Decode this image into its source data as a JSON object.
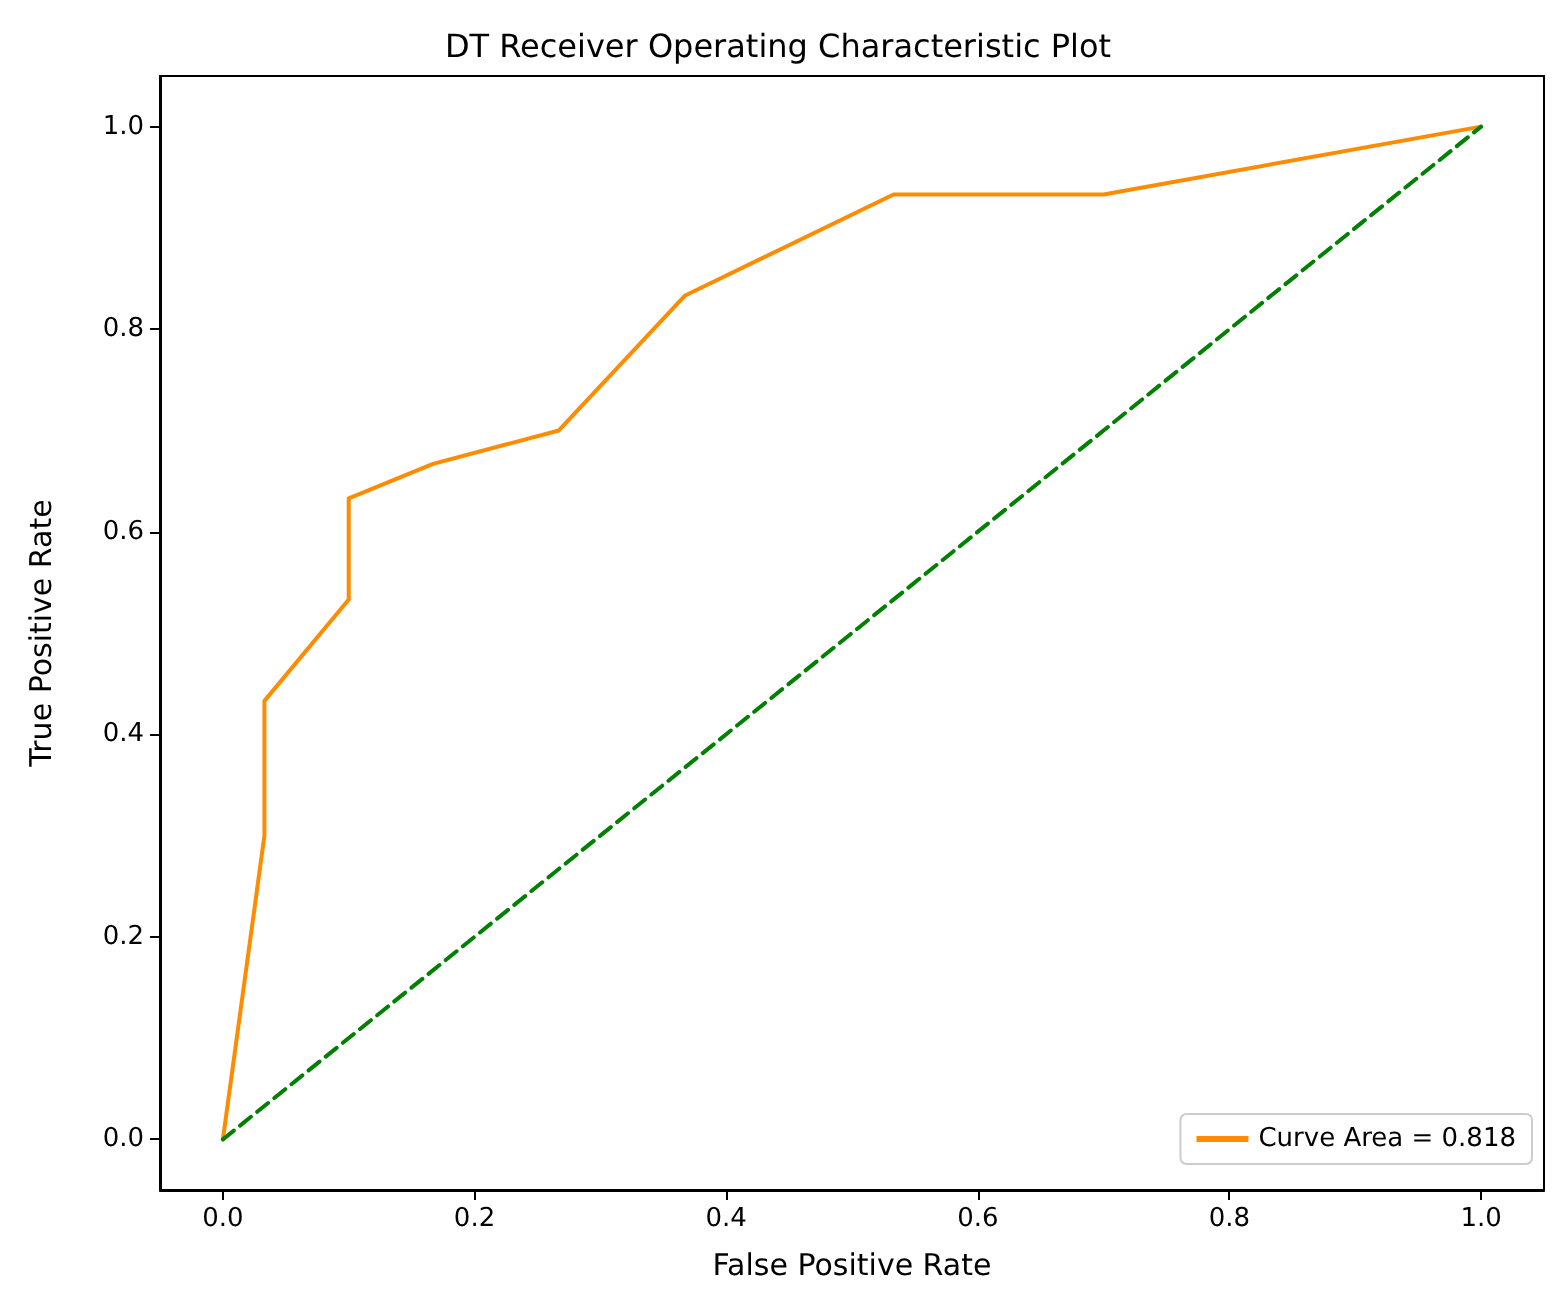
{
  "chart_data": {
    "type": "line",
    "title": "DT Receiver Operating Characteristic Plot",
    "xlabel": "False Positive Rate",
    "ylabel": "True Positive Rate",
    "series": [
      {
        "name": "Curve Area = 0.818",
        "color": "#ff8c00",
        "x": [
          0,
          0.033,
          0.033,
          0.1,
          0.1,
          0.167,
          0.267,
          0.367,
          0.533,
          0.7,
          1
        ],
        "values": [
          0,
          0.3,
          0.433,
          0.533,
          0.633,
          0.667,
          0.7,
          0.833,
          0.933,
          0.933,
          1
        ],
        "line_style": "solid"
      },
      {
        "color": "#008000",
        "x": [
          0,
          1
        ],
        "values": [
          0,
          1
        ],
        "line_style": "dashed"
      }
    ],
    "xlim": [
      -0.05,
      1.05
    ],
    "ylim": [
      -0.05,
      1.05
    ],
    "xticks": [
      {
        "value": 0,
        "label": "0.0"
      },
      {
        "value": 0.2,
        "label": "0.2"
      },
      {
        "value": 0.4,
        "label": "0.4"
      },
      {
        "value": 0.6,
        "label": "0.6"
      },
      {
        "value": 0.8,
        "label": "0.8"
      },
      {
        "value": 1,
        "label": "1.0"
      }
    ],
    "yticks": [
      {
        "value": 0,
        "label": "0.0"
      },
      {
        "value": 0.2,
        "label": "0.2"
      },
      {
        "value": 0.4,
        "label": "0.4"
      },
      {
        "value": 0.6,
        "label": "0.6"
      },
      {
        "value": 0.8,
        "label": "0.8"
      },
      {
        "value": 1,
        "label": "1.0"
      }
    ],
    "legend": "bottom right",
    "marker": "none"
  }
}
